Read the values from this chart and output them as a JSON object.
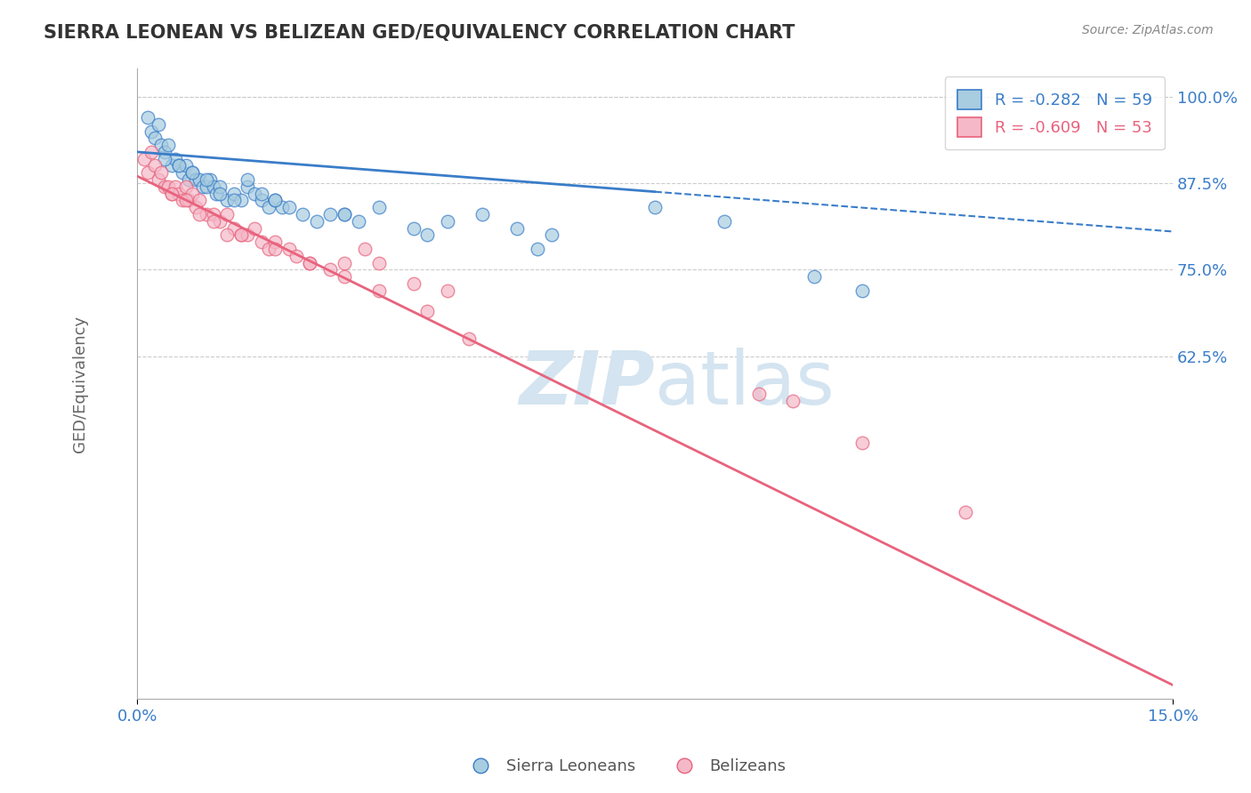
{
  "title": "SIERRA LEONEAN VS BELIZEAN GED/EQUIVALENCY CORRELATION CHART",
  "source": "Source: ZipAtlas.com",
  "ylabel": "GED/Equivalency",
  "xlim": [
    0.0,
    15.0
  ],
  "ylim": [
    13.0,
    104.0
  ],
  "yticks": [
    62.5,
    75.0,
    87.5,
    100.0
  ],
  "xticks": [
    0.0,
    15.0
  ],
  "blue_R": -0.282,
  "blue_N": 59,
  "pink_R": -0.609,
  "pink_N": 53,
  "legend_label_blue": "Sierra Leoneans",
  "legend_label_pink": "Belizeans",
  "blue_color": "#a8cce0",
  "pink_color": "#f5b8c8",
  "blue_line_color": "#3a7dc9",
  "pink_line_color": "#e8637d",
  "blue_scatter_x": [
    0.15,
    0.2,
    0.25,
    0.3,
    0.35,
    0.4,
    0.45,
    0.5,
    0.55,
    0.6,
    0.65,
    0.7,
    0.75,
    0.8,
    0.85,
    0.9,
    0.95,
    1.0,
    1.05,
    1.1,
    1.15,
    1.2,
    1.3,
    1.4,
    1.5,
    1.6,
    1.7,
    1.8,
    1.9,
    2.0,
    2.1,
    2.2,
    2.4,
    2.6,
    2.8,
    3.0,
    3.2,
    3.5,
    4.0,
    4.5,
    5.0,
    5.5,
    6.0,
    7.5,
    8.5,
    4.2,
    5.8,
    0.4,
    0.6,
    0.8,
    1.0,
    1.2,
    1.4,
    1.6,
    1.8,
    2.0,
    3.0,
    10.5,
    9.8
  ],
  "blue_scatter_y": [
    97,
    95,
    94,
    96,
    93,
    92,
    93,
    90,
    91,
    90,
    89,
    90,
    88,
    89,
    88,
    88,
    87,
    87,
    88,
    87,
    86,
    87,
    85,
    86,
    85,
    87,
    86,
    85,
    84,
    85,
    84,
    84,
    83,
    82,
    83,
    83,
    82,
    84,
    81,
    82,
    83,
    81,
    80,
    84,
    82,
    80,
    78,
    91,
    90,
    89,
    88,
    86,
    85,
    88,
    86,
    85,
    83,
    72,
    74
  ],
  "pink_scatter_x": [
    0.1,
    0.15,
    0.2,
    0.25,
    0.3,
    0.35,
    0.4,
    0.45,
    0.5,
    0.55,
    0.6,
    0.65,
    0.7,
    0.75,
    0.8,
    0.85,
    0.9,
    1.0,
    1.1,
    1.2,
    1.3,
    1.4,
    1.5,
    1.6,
    1.7,
    1.8,
    1.9,
    2.0,
    2.2,
    2.5,
    2.8,
    3.0,
    3.3,
    3.5,
    4.0,
    4.5,
    4.8,
    2.3,
    0.5,
    0.7,
    0.9,
    1.1,
    1.3,
    1.5,
    2.0,
    2.5,
    3.0,
    3.5,
    4.2,
    9.0,
    9.5,
    10.5,
    12.0
  ],
  "pink_scatter_y": [
    91,
    89,
    92,
    90,
    88,
    89,
    87,
    87,
    86,
    87,
    86,
    85,
    87,
    85,
    86,
    84,
    85,
    83,
    83,
    82,
    83,
    81,
    80,
    80,
    81,
    79,
    78,
    79,
    78,
    76,
    75,
    76,
    78,
    76,
    73,
    72,
    65,
    77,
    86,
    85,
    83,
    82,
    80,
    80,
    78,
    76,
    74,
    72,
    69,
    57,
    56,
    50,
    40
  ],
  "blue_line_x0": 0.0,
  "blue_line_y0": 92.0,
  "blue_line_x1": 15.0,
  "blue_line_y1": 80.5,
  "blue_solid_end_x": 7.5,
  "pink_line_x0": 0.0,
  "pink_line_y0": 88.5,
  "pink_line_x1": 15.0,
  "pink_line_y1": 15.0,
  "grid_color": "#cccccc",
  "background_color": "#ffffff",
  "watermark_color": "#d4e4f0"
}
